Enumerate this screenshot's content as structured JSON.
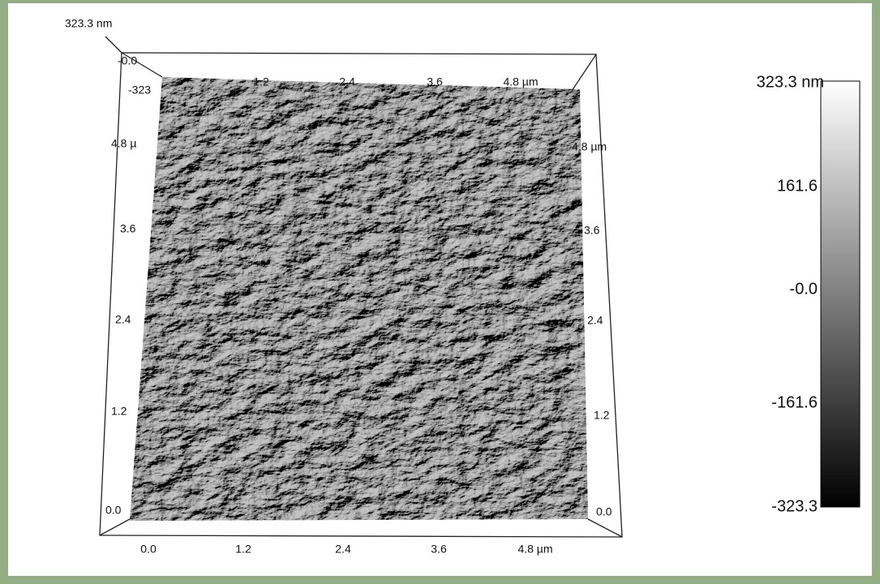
{
  "z_axis": {
    "top_label": "323.3 nm",
    "top_value": "-0.0",
    "side_value": "-323"
  },
  "back_x_axis": {
    "labels": [
      "1.2",
      "2.4",
      "3.6",
      "4.8 µm"
    ]
  },
  "front_x_axis": {
    "labels": [
      "0.0",
      "1.2",
      "2.4",
      "3.6",
      "4.8 µm"
    ]
  },
  "left_y_axis": {
    "labels": [
      "0.0",
      "1.2",
      "2.4",
      "3.6",
      "4.8 µ"
    ]
  },
  "right_y_axis": {
    "labels": [
      "0.0",
      "1.2",
      "2.4",
      "3.6",
      "4.8 µm"
    ]
  },
  "colorbar": {
    "labels": [
      "323.3 nm",
      "161.6",
      "-0.0",
      "-161.6",
      "-323.3"
    ]
  }
}
